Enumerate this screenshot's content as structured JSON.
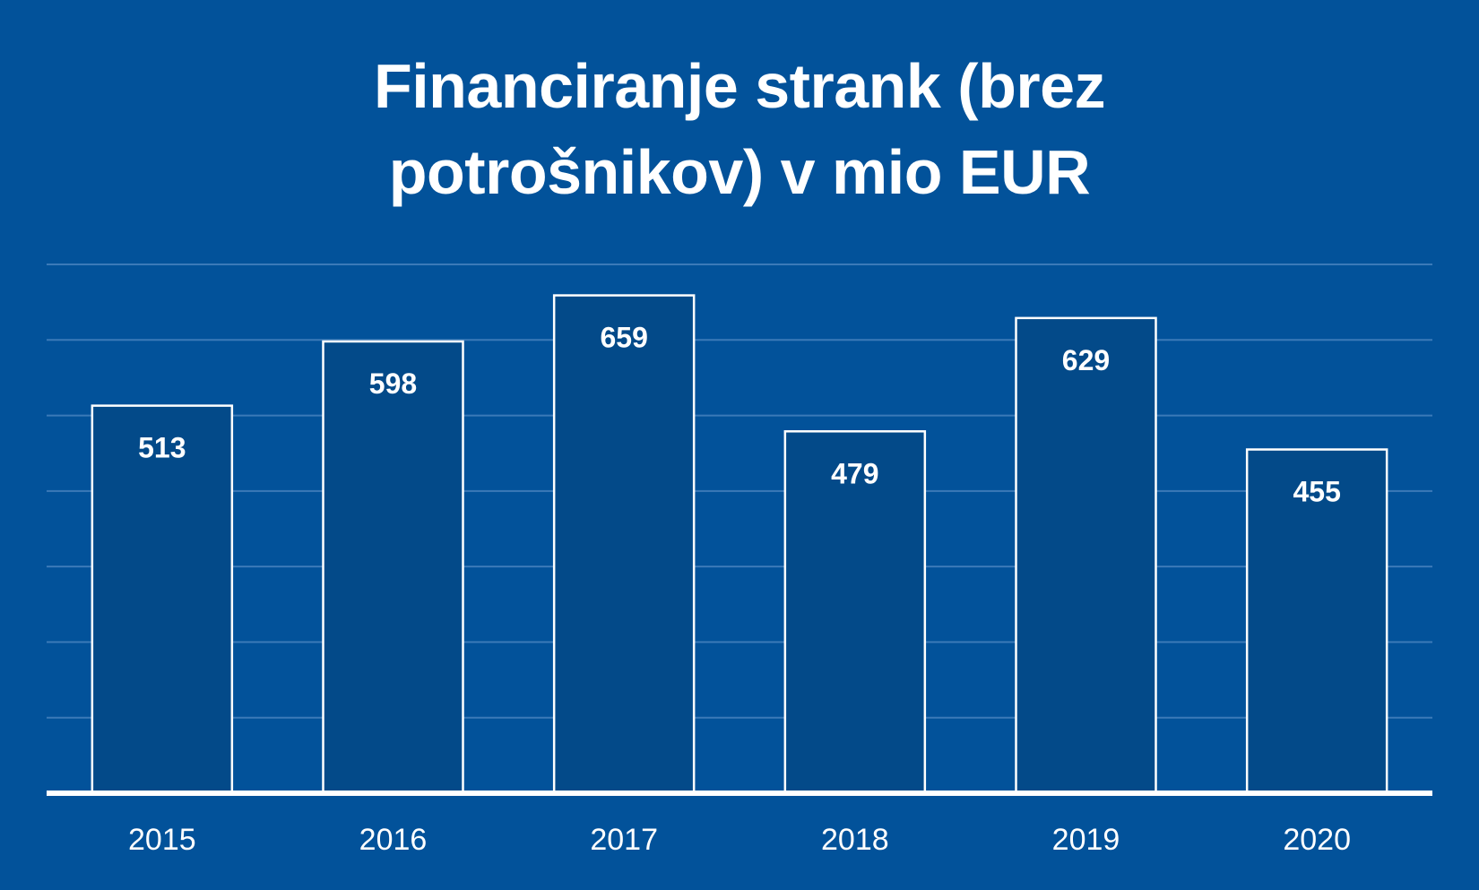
{
  "colors": {
    "background": "#02529a",
    "bar_fill": "#034a89",
    "bar_stroke": "#ffffff",
    "gridline": "#3b7ab8",
    "axis": "#ffffff",
    "text": "#ffffff"
  },
  "chart_data": {
    "type": "bar",
    "title_lines": [
      "Financiranje strank (brez",
      "potrošnikov) v mio EUR"
    ],
    "categories": [
      "2015",
      "2016",
      "2017",
      "2018",
      "2019",
      "2020"
    ],
    "values": [
      513,
      598,
      659,
      479,
      629,
      455
    ],
    "data_labels": [
      "513",
      "598",
      "659",
      "479",
      "629",
      "455"
    ],
    "ylim": [
      0,
      700
    ],
    "grid": true,
    "legend": "none"
  }
}
